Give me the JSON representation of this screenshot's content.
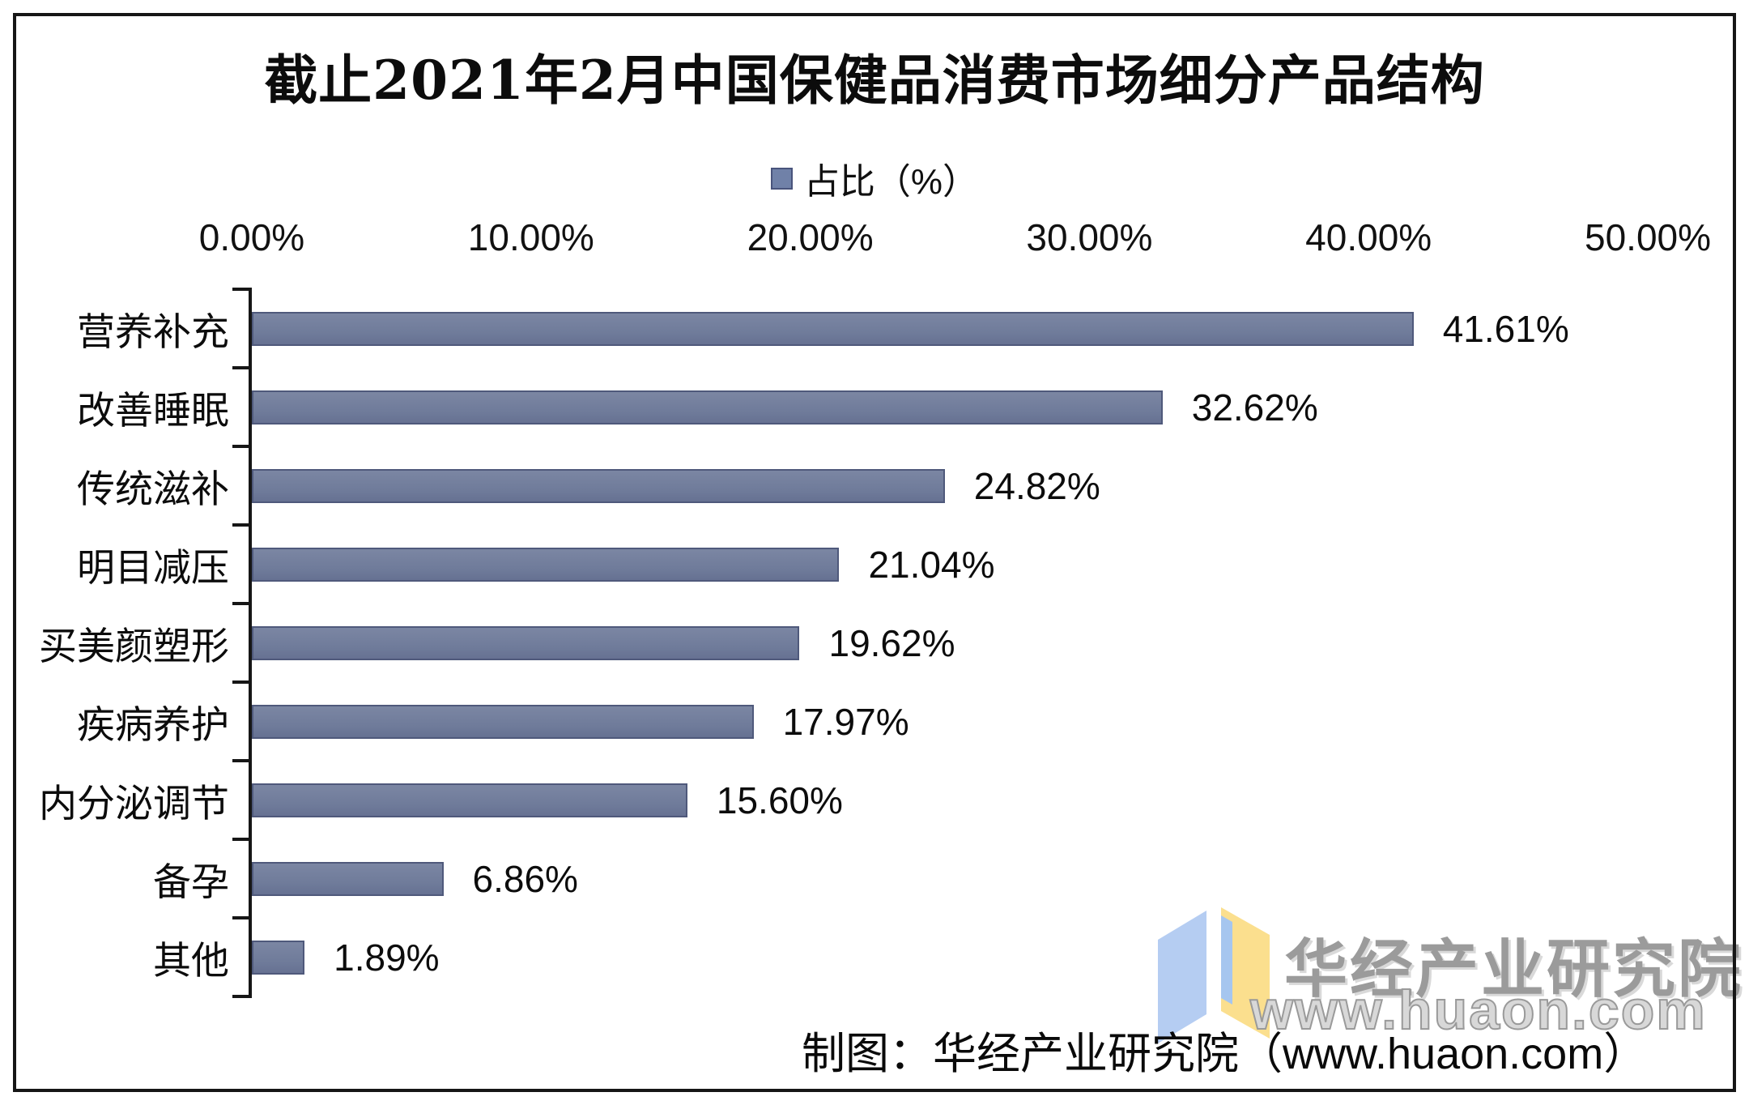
{
  "title": "截止2021年2月中国保健品消费市场细分产品结构",
  "legend": {
    "label": "占比（%）",
    "swatch_color": "#7081a8"
  },
  "chart_data": {
    "type": "bar",
    "orientation": "horizontal",
    "title": "截止2021年2月中国保健品消费市场细分产品结构",
    "legend_entries": [
      "占比（%）"
    ],
    "legend_position": "top",
    "grid": false,
    "categories": [
      "营养补充",
      "改善睡眠",
      "传统滋补",
      "明目减压",
      "买美颜塑形",
      "疾病养护",
      "内分泌调节",
      "备孕",
      "其他"
    ],
    "values": [
      41.61,
      32.62,
      24.82,
      21.04,
      19.62,
      17.97,
      15.6,
      6.86,
      1.89
    ],
    "value_labels": [
      "41.61%",
      "32.62%",
      "24.82%",
      "21.04%",
      "19.62%",
      "17.97%",
      "15.60%",
      "6.86%",
      "1.89%"
    ],
    "x_ticks": [
      "0.00%",
      "10.00%",
      "20.00%",
      "30.00%",
      "40.00%",
      "50.00%"
    ],
    "xlim": [
      0,
      50
    ],
    "xlabel": "",
    "ylabel": "",
    "bar_color": "#6f7b9a",
    "bar_border_color": "#4f597b"
  },
  "watermark": {
    "brand": "华经产业研究院",
    "url": "www.huaon.com",
    "logo_left_page_color": "#b5cdf2",
    "logo_right_page_color": "#fbdf8e"
  },
  "attribution": "制图：华经产业研究院（www.huaon.com）"
}
